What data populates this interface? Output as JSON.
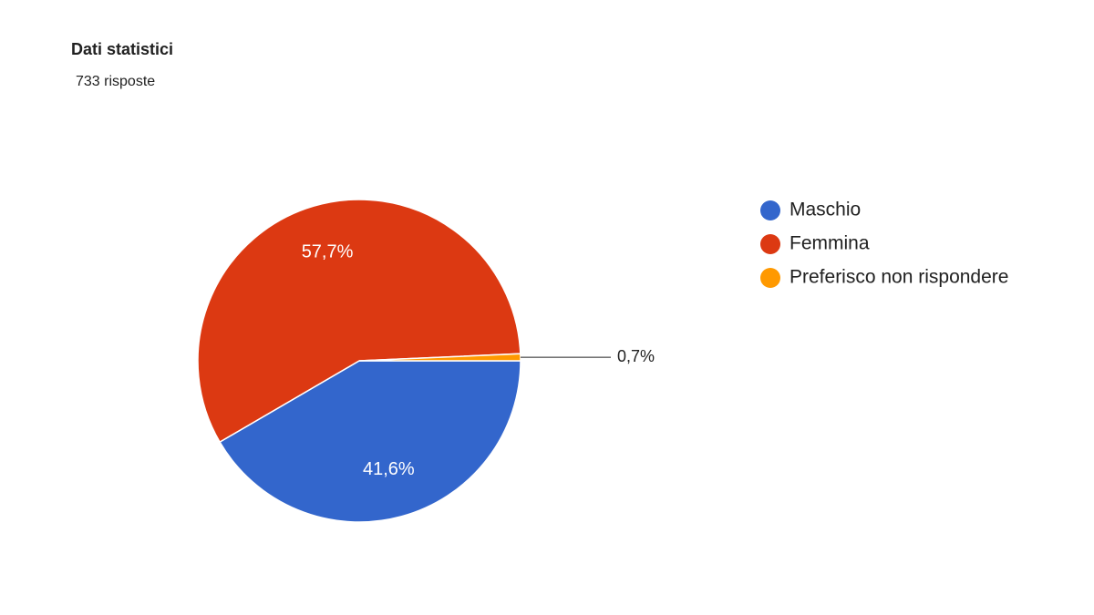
{
  "chart_data": {
    "type": "pie",
    "title": "Dati statistici",
    "subtitle": "733 risposte",
    "categories": [
      "Maschio",
      "Femmina",
      "Preferisco non rispondere"
    ],
    "values": [
      41.6,
      57.7,
      0.7
    ],
    "value_labels": [
      "41,6%",
      "57,7%",
      "0,7%"
    ],
    "colors": [
      "#3366cc",
      "#dc3912",
      "#ff9900"
    ],
    "legend": "right"
  }
}
